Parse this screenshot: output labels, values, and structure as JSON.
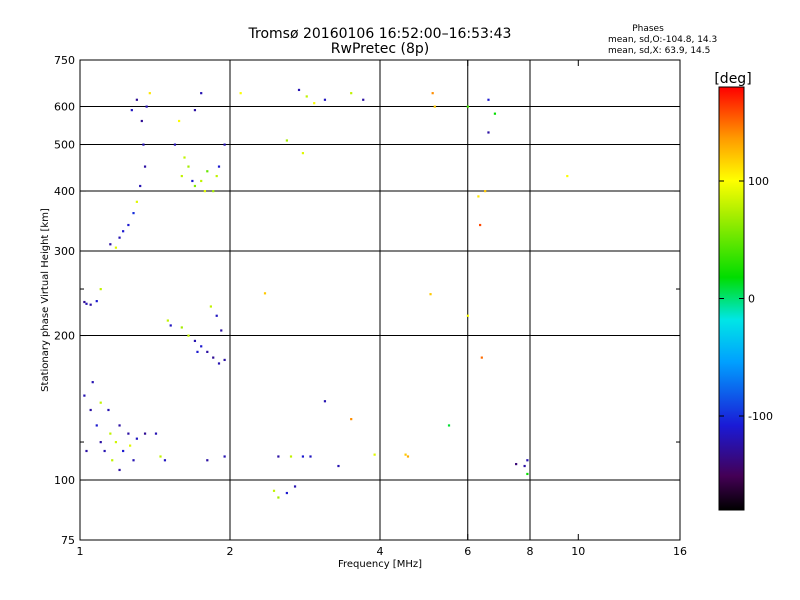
{
  "chart_data": {
    "type": "scatter",
    "title": "Tromsø 20160106 16:52:00–16:53:43",
    "subtitle": "RwPretec (8p)",
    "xlabel": "Frequency [MHz]",
    "ylabel": "Stationary phase Virtual Height [km]",
    "xscale": "log",
    "yscale": "log",
    "xlim": [
      1,
      16
    ],
    "ylim": [
      75,
      750
    ],
    "x_ticks": [
      1,
      2,
      4,
      6,
      8,
      10,
      16
    ],
    "x_grid": [
      2,
      4,
      6,
      8
    ],
    "y_ticks": [
      75,
      100,
      200,
      300,
      400,
      500,
      600,
      750
    ],
    "y_grid": [
      100,
      200,
      300,
      400,
      500,
      600
    ],
    "y_minor_ticks": [
      120,
      250
    ],
    "grid": true,
    "phase_stats": {
      "title": "Phases",
      "line_o": "mean, sd,O:-104.8, 14.3",
      "line_x": "mean, sd,X:  63.9, 14.5"
    },
    "colorbar": {
      "label": "[deg]",
      "min": -180,
      "max": 180,
      "ticks": [
        100,
        0,
        -100
      ]
    },
    "series": [
      {
        "points": [
          [
            1.02,
            235,
            -130
          ],
          [
            1.05,
            232,
            -125
          ],
          [
            1.08,
            236,
            -110
          ],
          [
            1.1,
            250,
            80
          ],
          [
            1.03,
            233,
            -120
          ],
          [
            1.2,
            320,
            -120
          ],
          [
            1.25,
            340,
            -110
          ],
          [
            1.28,
            360,
            -100
          ],
          [
            1.3,
            380,
            90
          ],
          [
            1.32,
            410,
            -120
          ],
          [
            1.35,
            450,
            -125
          ],
          [
            1.34,
            500,
            -120
          ],
          [
            1.33,
            560,
            -130
          ],
          [
            1.36,
            600,
            -120
          ],
          [
            1.38,
            640,
            110
          ],
          [
            1.3,
            620,
            -130
          ],
          [
            1.27,
            590,
            -115
          ],
          [
            1.15,
            310,
            -125
          ],
          [
            1.18,
            305,
            90
          ],
          [
            1.22,
            330,
            -110
          ],
          [
            1.6,
            430,
            80
          ],
          [
            1.65,
            450,
            70
          ],
          [
            1.7,
            410,
            60
          ],
          [
            1.75,
            420,
            80
          ],
          [
            1.8,
            440,
            50
          ],
          [
            1.62,
            470,
            80
          ],
          [
            1.55,
            500,
            -120
          ],
          [
            1.85,
            400,
            70
          ],
          [
            1.9,
            450,
            -110
          ],
          [
            1.58,
            560,
            100
          ],
          [
            1.7,
            590,
            -125
          ],
          [
            1.75,
            640,
            -120
          ],
          [
            1.95,
            500,
            -120
          ],
          [
            1.68,
            420,
            -110
          ],
          [
            1.78,
            400,
            90
          ],
          [
            1.88,
            430,
            80
          ],
          [
            1.5,
            215,
            80
          ],
          [
            1.52,
            210,
            -115
          ],
          [
            1.6,
            208,
            70
          ],
          [
            1.65,
            200,
            80
          ],
          [
            1.7,
            195,
            -120
          ],
          [
            1.75,
            190,
            -110
          ],
          [
            1.8,
            185,
            -125
          ],
          [
            1.85,
            180,
            -130
          ],
          [
            1.9,
            175,
            -120
          ],
          [
            1.95,
            178,
            -125
          ],
          [
            1.88,
            220,
            -115
          ],
          [
            1.92,
            205,
            -125
          ],
          [
            1.83,
            230,
            80
          ],
          [
            1.72,
            185,
            -110
          ],
          [
            1.02,
            150,
            -120
          ],
          [
            1.05,
            140,
            -125
          ],
          [
            1.08,
            130,
            -110
          ],
          [
            1.1,
            120,
            -125
          ],
          [
            1.12,
            115,
            -120
          ],
          [
            1.15,
            125,
            80
          ],
          [
            1.18,
            120,
            85
          ],
          [
            1.2,
            130,
            -125
          ],
          [
            1.22,
            115,
            -110
          ],
          [
            1.25,
            125,
            -125
          ],
          [
            1.28,
            110,
            -120
          ],
          [
            1.3,
            122,
            -115
          ],
          [
            1.35,
            125,
            -130
          ],
          [
            1.03,
            115,
            -125
          ],
          [
            1.06,
            160,
            -120
          ],
          [
            1.1,
            145,
            80
          ],
          [
            1.14,
            140,
            -120
          ],
          [
            1.16,
            110,
            80
          ],
          [
            1.2,
            105,
            -125
          ],
          [
            1.26,
            118,
            90
          ],
          [
            1.42,
            125,
            -120
          ],
          [
            1.45,
            112,
            80
          ],
          [
            1.48,
            110,
            -115
          ],
          [
            1.8,
            110,
            -125
          ],
          [
            1.95,
            112,
            -120
          ],
          [
            2.1,
            640,
            100
          ],
          [
            2.75,
            650,
            -120
          ],
          [
            2.85,
            630,
            80
          ],
          [
            2.95,
            610,
            100
          ],
          [
            3.1,
            620,
            -115
          ],
          [
            3.5,
            640,
            80
          ],
          [
            3.7,
            620,
            -125
          ],
          [
            5.1,
            640,
            140
          ],
          [
            5.15,
            600,
            120
          ],
          [
            6.0,
            600,
            40
          ],
          [
            6.6,
            620,
            -110
          ],
          [
            6.8,
            580,
            20
          ],
          [
            5.05,
            244,
            120
          ],
          [
            6.0,
            220,
            100
          ],
          [
            6.4,
            180,
            150
          ],
          [
            6.35,
            340,
            160
          ],
          [
            6.5,
            400,
            120
          ],
          [
            6.3,
            390,
            110
          ],
          [
            6.6,
            530,
            -125
          ],
          [
            9.5,
            430,
            100
          ],
          [
            2.6,
            510,
            70
          ],
          [
            2.8,
            480,
            90
          ],
          [
            2.35,
            245,
            120
          ],
          [
            2.45,
            95,
            80
          ],
          [
            2.5,
            92,
            70
          ],
          [
            2.6,
            94,
            -110
          ],
          [
            2.7,
            97,
            -120
          ],
          [
            2.5,
            112,
            -125
          ],
          [
            2.65,
            112,
            80
          ],
          [
            2.8,
            112,
            -110
          ],
          [
            2.9,
            112,
            -115
          ],
          [
            3.3,
            107,
            -120
          ],
          [
            3.1,
            146,
            -120
          ],
          [
            3.5,
            134,
            140
          ],
          [
            3.9,
            113,
            90
          ],
          [
            4.5,
            113,
            120
          ],
          [
            4.55,
            112,
            130
          ],
          [
            5.5,
            130,
            10
          ],
          [
            7.8,
            107,
            -125
          ],
          [
            7.9,
            110,
            -120
          ],
          [
            7.5,
            108,
            -140
          ],
          [
            7.9,
            103,
            20
          ]
        ]
      }
    ]
  }
}
